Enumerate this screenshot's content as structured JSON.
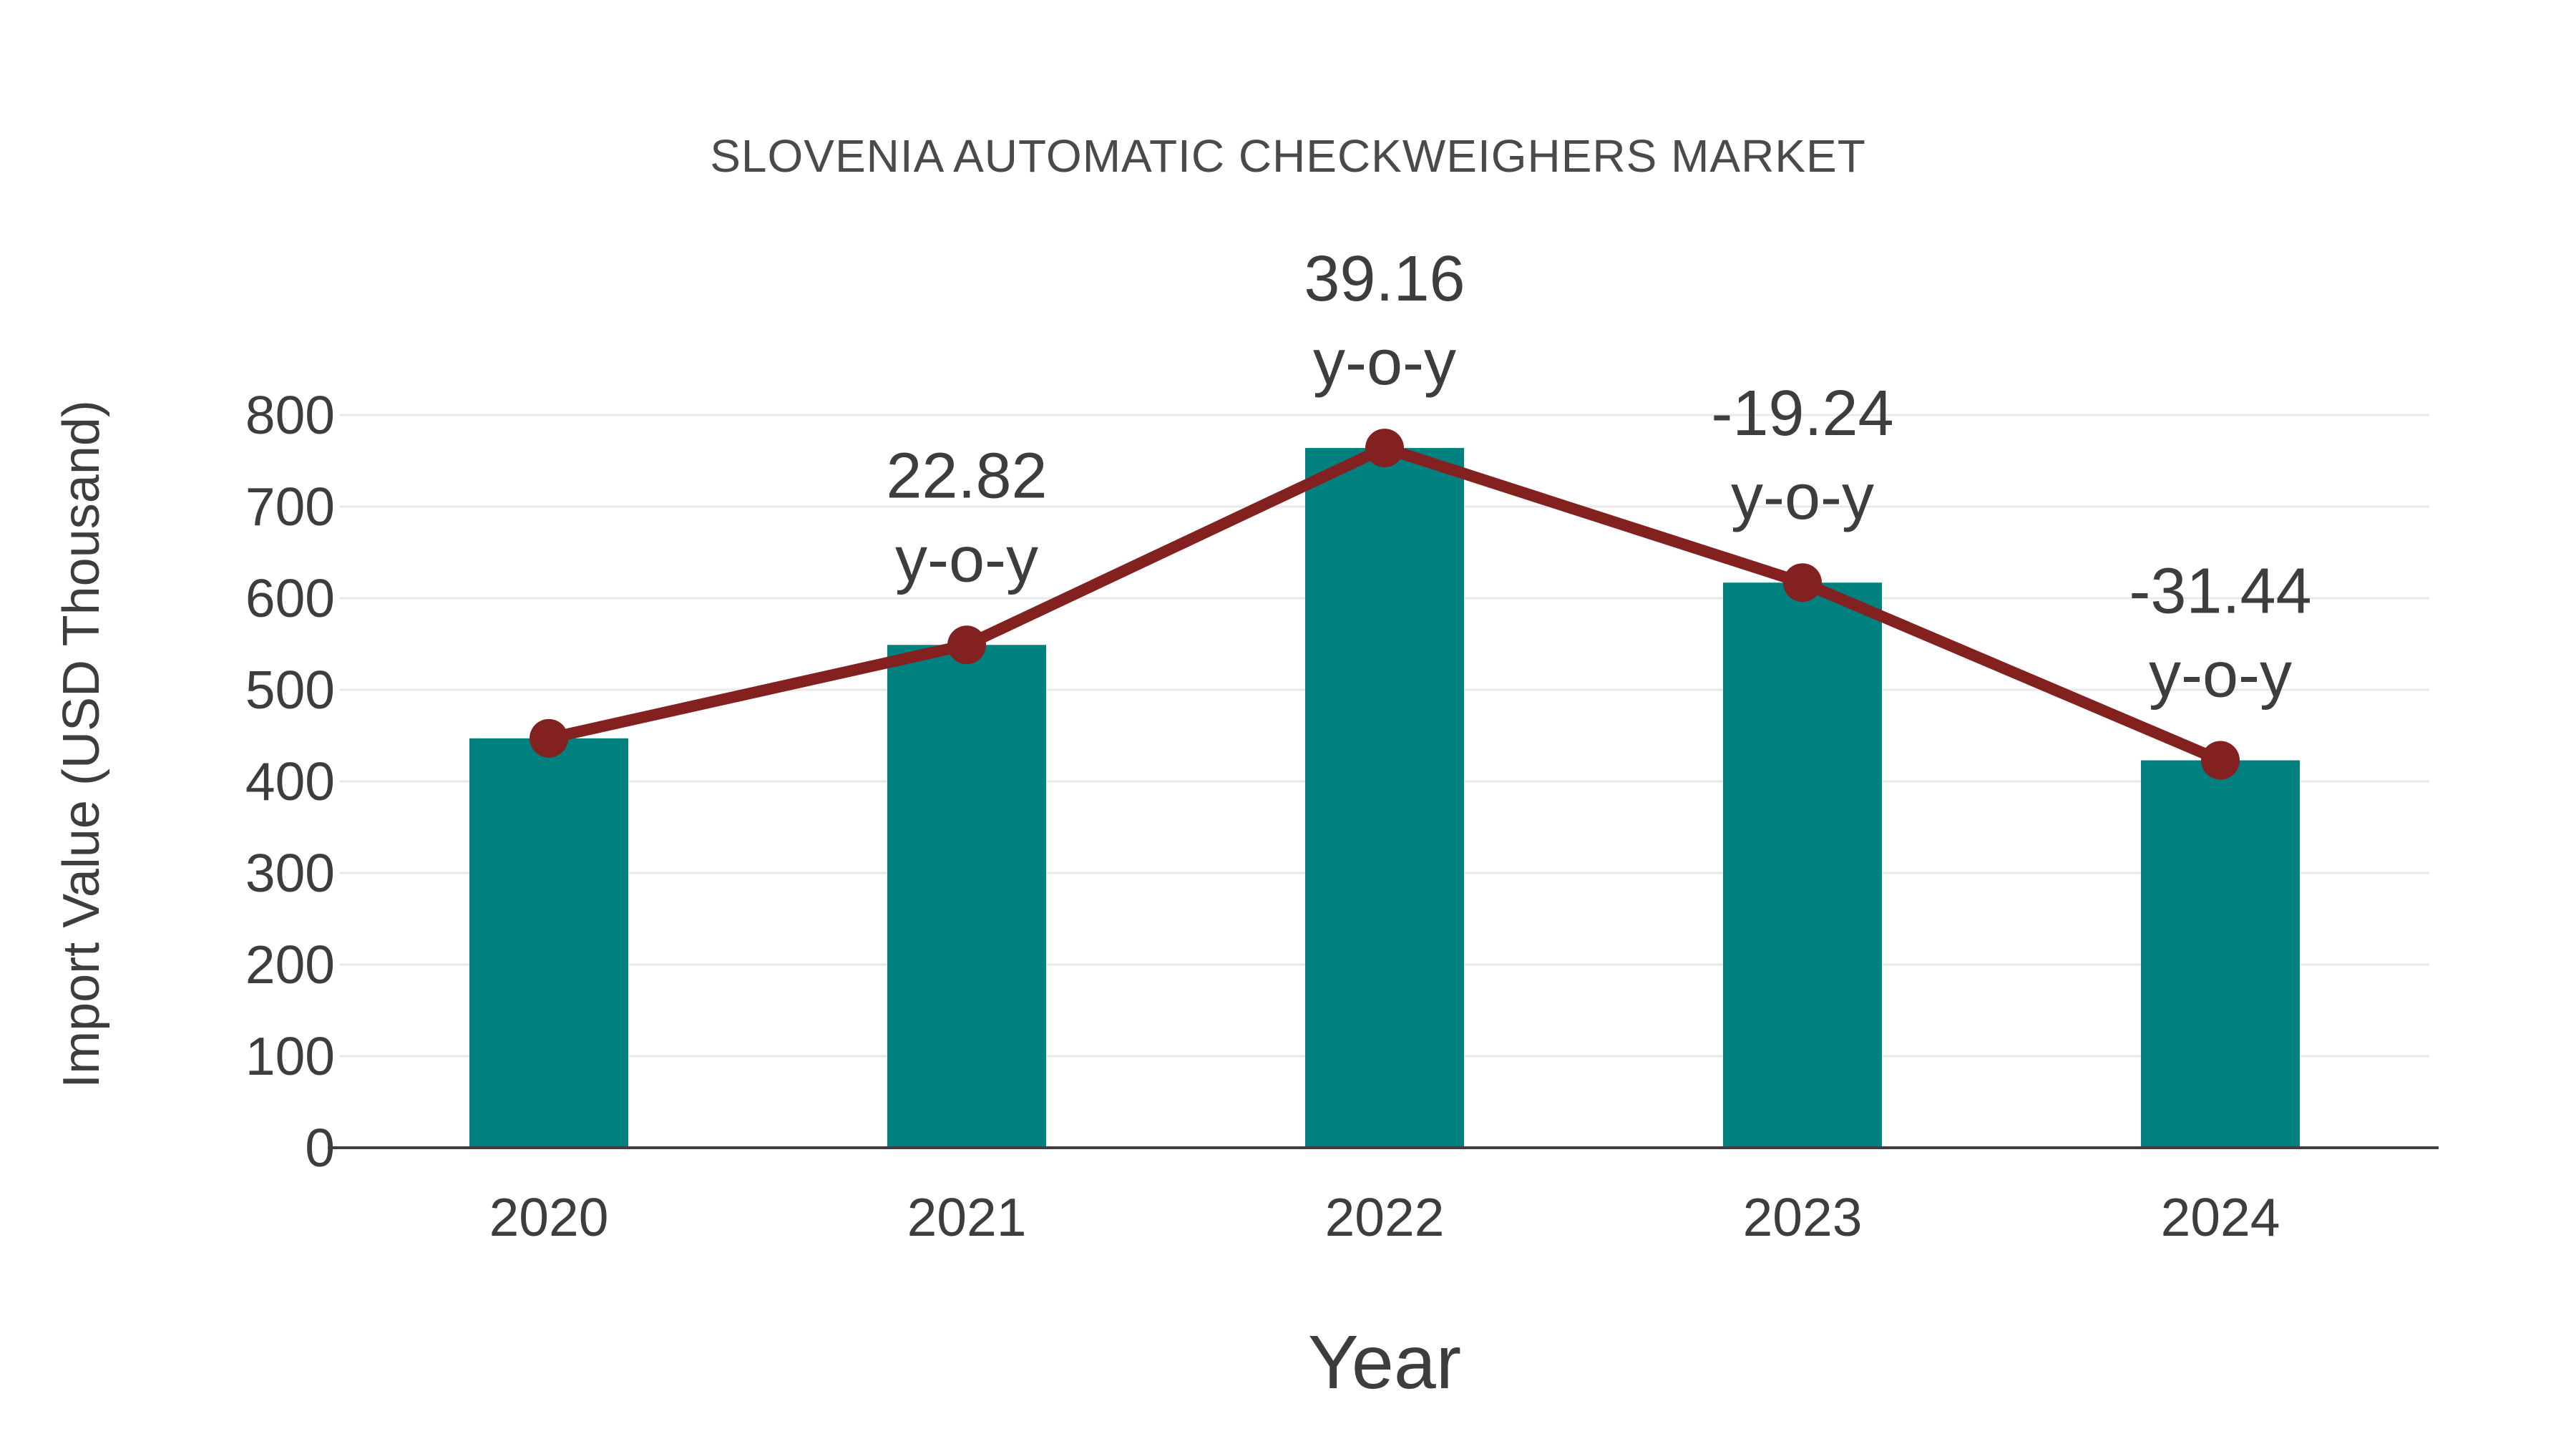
{
  "chart_data": {
    "type": "bar",
    "title": "SLOVENIA AUTOMATIC CHECKWEIGHERS MARKET",
    "xlabel": "Year",
    "ylabel": "Import Value (USD Thousand)",
    "categories": [
      "2020",
      "2021",
      "2022",
      "2023",
      "2024"
    ],
    "values": [
      447,
      549,
      764,
      617,
      423
    ],
    "series": [
      {
        "name": "Import Value (USD Thousand)",
        "type": "bar",
        "values": [
          447,
          549,
          764,
          617,
          423
        ]
      },
      {
        "name": "y-o-y trend line",
        "type": "line",
        "values": [
          447,
          549,
          764,
          617,
          423
        ]
      }
    ],
    "yoy_percent": [
      null,
      22.82,
      39.16,
      -19.24,
      -31.44
    ],
    "annotations": [
      {
        "category": "2021",
        "value_line": "22.82",
        "unit_line": "y-o-y"
      },
      {
        "category": "2022",
        "value_line": "39.16",
        "unit_line": "y-o-y"
      },
      {
        "category": "2023",
        "value_line": "-19.24",
        "unit_line": "y-o-y"
      },
      {
        "category": "2024",
        "value_line": "-31.44",
        "unit_line": "y-o-y"
      }
    ],
    "ytick_labels": [
      "0",
      "100",
      "200",
      "300",
      "400",
      "500",
      "600",
      "700",
      "800"
    ],
    "yticks": [
      0,
      100,
      200,
      300,
      400,
      500,
      600,
      700,
      800
    ],
    "ylim": [
      0,
      800
    ],
    "grid": true,
    "legend": "none",
    "colors": {
      "bar": "#008180",
      "line": "#832121",
      "marker": "#832121",
      "grid": "#e9e9e9",
      "axis_line": "#3f3f3f",
      "text": "#3d3d3d",
      "title_text": "#4a4a4a",
      "background": "#ffffff"
    }
  }
}
